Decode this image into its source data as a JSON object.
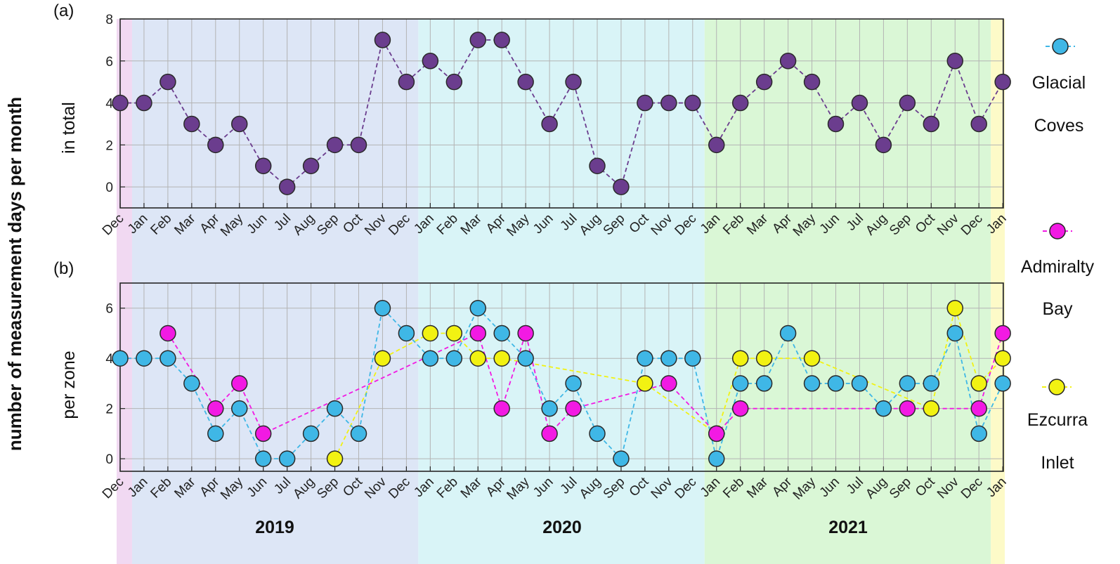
{
  "colors": {
    "background": "#ffffff",
    "band_dec2018": "#f1d9f2",
    "band_2019": "#dde6f6",
    "band_2020": "#d9f4f7",
    "band_2021": "#daf7d6",
    "band_jan2022": "#fdfac8",
    "grid": "#b3b3b3",
    "axis": "#262626",
    "total": "#6b3d8e",
    "glacial": "#3fb7e6",
    "admiralty": "#f21ae3",
    "ezcurra": "#f2f212"
  },
  "chart_data": [
    {
      "type": "line",
      "panel_label": "(a)",
      "ylabel": "in total",
      "ylim": [
        -1,
        8
      ],
      "yticks": [
        0,
        2,
        4,
        6,
        8
      ],
      "grid": true,
      "categories": [
        "Dec",
        "Jan",
        "Feb",
        "Mar",
        "Apr",
        "May",
        "Jun",
        "Jul",
        "Aug",
        "Sep",
        "Oct",
        "Nov",
        "Dec",
        "Jan",
        "Feb",
        "Mar",
        "Apr",
        "May",
        "Jun",
        "Jul",
        "Aug",
        "Sep",
        "Oct",
        "Nov",
        "Dec",
        "Jan",
        "Feb",
        "Mar",
        "Apr",
        "May",
        "Jun",
        "Jul",
        "Aug",
        "Sep",
        "Oct",
        "Nov",
        "Dec",
        "Jan"
      ],
      "series": [
        {
          "color_key": "total",
          "values": [
            4,
            4,
            5,
            3,
            2,
            3,
            1,
            0,
            1,
            2,
            2,
            7,
            5,
            6,
            5,
            7,
            7,
            5,
            3,
            5,
            1,
            0,
            4,
            4,
            4,
            2,
            4,
            5,
            6,
            5,
            3,
            4,
            2,
            4,
            3,
            6,
            3,
            5
          ]
        }
      ]
    },
    {
      "type": "line",
      "panel_label": "(b)",
      "ylabel": "per zone",
      "ylim": [
        -0.5,
        7
      ],
      "yticks": [
        0,
        2,
        4,
        6
      ],
      "grid": true,
      "categories": [
        "Dec",
        "Jan",
        "Feb",
        "Mar",
        "Apr",
        "May",
        "Jun",
        "Jul",
        "Aug",
        "Sep",
        "Oct",
        "Nov",
        "Dec",
        "Jan",
        "Feb",
        "Mar",
        "Apr",
        "May",
        "Jun",
        "Jul",
        "Aug",
        "Sep",
        "Oct",
        "Nov",
        "Dec",
        "Jan",
        "Feb",
        "Mar",
        "Apr",
        "May",
        "Jun",
        "Jul",
        "Aug",
        "Sep",
        "Oct",
        "Nov",
        "Dec",
        "Jan"
      ],
      "series": [
        {
          "name": "Ezcurra Inlet",
          "color_key": "ezcurra",
          "values": [
            null,
            null,
            null,
            null,
            null,
            null,
            null,
            null,
            null,
            0,
            null,
            4,
            null,
            5,
            5,
            4,
            4,
            null,
            null,
            null,
            null,
            null,
            3,
            null,
            null,
            1,
            4,
            4,
            null,
            4,
            null,
            null,
            null,
            null,
            2,
            6,
            3,
            4
          ]
        },
        {
          "name": "Admiralty Bay",
          "color_key": "admiralty",
          "values": [
            null,
            null,
            5,
            null,
            2,
            3,
            1,
            null,
            null,
            null,
            null,
            null,
            null,
            null,
            null,
            5,
            2,
            5,
            1,
            2,
            null,
            null,
            null,
            3,
            null,
            1,
            2,
            null,
            null,
            null,
            null,
            null,
            null,
            2,
            null,
            null,
            2,
            5
          ]
        },
        {
          "name": "Glacial Coves",
          "color_key": "glacial",
          "values": [
            4,
            4,
            4,
            3,
            1,
            2,
            0,
            0,
            1,
            2,
            1,
            6,
            5,
            4,
            4,
            6,
            5,
            4,
            2,
            3,
            1,
            0,
            4,
            4,
            4,
            0,
            3,
            3,
            5,
            3,
            3,
            3,
            2,
            3,
            3,
            5,
            1,
            3
          ]
        }
      ]
    }
  ],
  "shared_ylabel": "number of measurement days per month",
  "years": [
    "2019",
    "2020",
    "2021"
  ],
  "legend": [
    {
      "series": "Glacial Coves",
      "color_key": "glacial",
      "lines": [
        "Glacial",
        "Coves"
      ]
    },
    {
      "series": "Admiralty Bay",
      "color_key": "admiralty",
      "lines": [
        "Admiralty",
        "Bay"
      ]
    },
    {
      "series": "Ezcurra Inlet",
      "color_key": "ezcurra",
      "lines": [
        "Ezcurra",
        "Inlet"
      ]
    }
  ]
}
